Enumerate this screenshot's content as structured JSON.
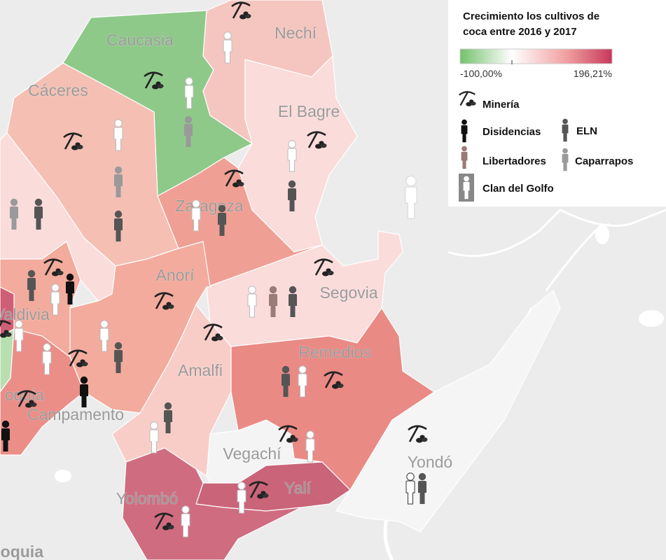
{
  "map": {
    "labels": [
      "Caucasia",
      "Nechí",
      "Cáceres",
      "El Bagre",
      "Zaragoza",
      "Anorí",
      "Segovia",
      "Valdivia",
      "Remedios",
      "Amalfi",
      "oquia",
      "Campamento",
      "Vegachí",
      "Yondó",
      "Yalí",
      "Yolombó",
      "Antioquia",
      "Maceo"
    ],
    "legend": {
      "title_lines": [
        "Crecimiento los cultivos de",
        "coca entre 2016 y 2017"
      ],
      "scale_min": "-100,00%",
      "scale_max": "196,21%",
      "items": [
        "Minería",
        "Disidencias",
        "ELN",
        "Libertadores",
        "Caparrapos",
        "Clan del Golfo"
      ]
    }
  }
}
